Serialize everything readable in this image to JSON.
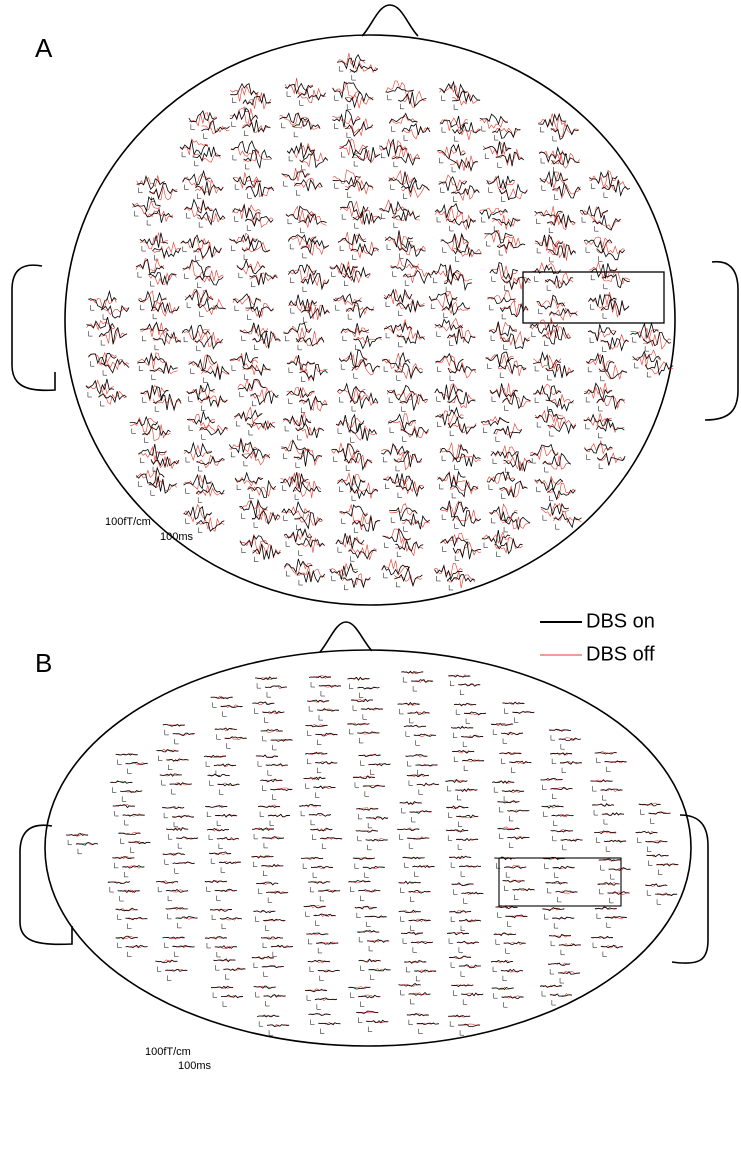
{
  "panels": [
    {
      "label": "A",
      "scale_amplitude": "100fT/cm",
      "scale_time": "100ms"
    },
    {
      "label": "B",
      "scale_amplitude": "100fT/cm",
      "scale_time": "100ms"
    }
  ],
  "legend": [
    {
      "label": "DBS on",
      "color": "#000000"
    },
    {
      "label": "DBS off",
      "color": "#e8372a"
    }
  ]
}
